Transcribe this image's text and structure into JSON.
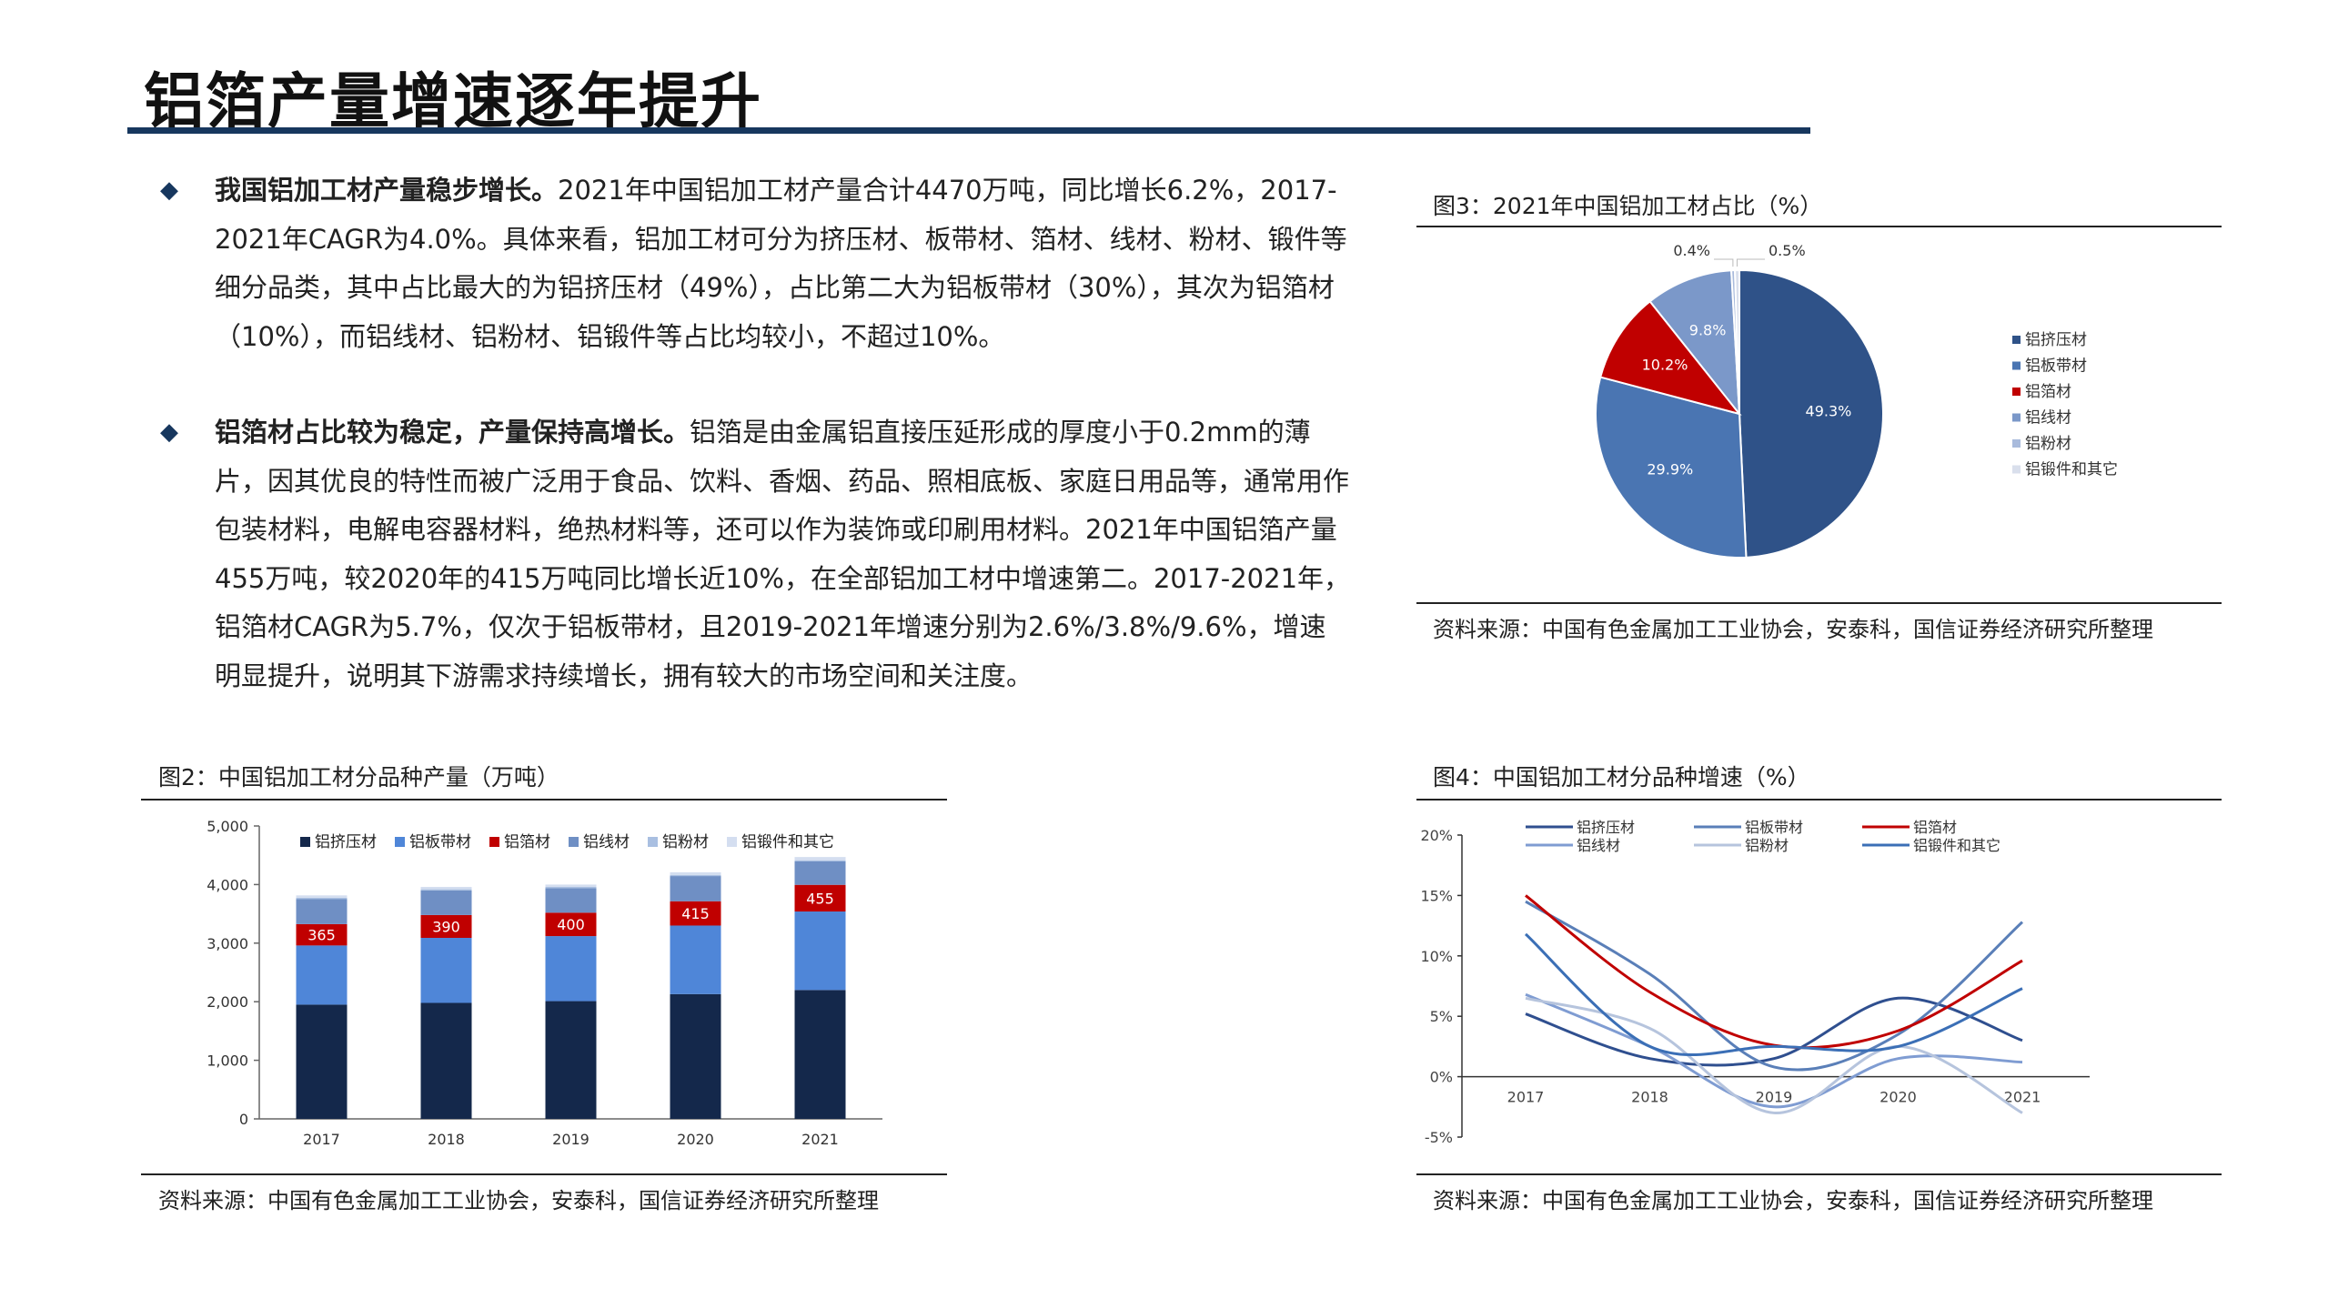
{
  "page_title": "铝箔产量增速逐年提升",
  "paragraphs": [
    {
      "lead": "我国铝加工材产量稳步增长。",
      "body": "2021年中国铝加工材产量合计4470万吨，同比增长6.2%，2017-2021年CAGR为4.0%。具体来看，铝加工材可分为挤压材、板带材、箔材、线材、粉材、锻件等细分品类，其中占比最大的为铝挤压材（49%），占比第二大为铝板带材（30%），其次为铝箔材（10%），而铝线材、铝粉材、铝锻件等占比均较小，不超过10%。"
    },
    {
      "lead": "铝箔材占比较为稳定，产量保持高增长。",
      "body": "铝箔是由金属铝直接压延形成的厚度小于0.2mm的薄片，因其优良的特性而被广泛用于食品、饮料、香烟、药品、照相底板、家庭日用品等，通常用作包装材料，电解电容器材料，绝热材料等，还可以作为装饰或印刷用材料。2021年中国铝箔产量455万吨，较2020年的415万吨同比增长近10%，在全部铝加工材中增速第二。2017-2021年，铝箔材CAGR为5.7%，仅次于铝板带材，且2019-2021年增速分别为2.6%/3.8%/9.6%，增速明显提升，说明其下游需求持续增长，拥有较大的市场空间和关注度。"
    }
  ],
  "figures": {
    "fig2": {
      "title": "图2：中国铝加工材分品种产量（万吨）",
      "source": "资料来源：中国有色金属加工工业协会，安泰科，国信证券经济研究所整理"
    },
    "fig3": {
      "title": "图3：2021年中国铝加工材占比（%）",
      "source": "资料来源：中国有色金属加工工业协会，安泰科，国信证券经济研究所整理"
    },
    "fig4": {
      "title": "图4：中国铝加工材分品种增速（%）",
      "source": "资料来源：中国有色金属加工工业协会，安泰科，国信证券经济研究所整理"
    }
  },
  "chart_data": [
    {
      "id": "fig2",
      "type": "bar",
      "stacked": true,
      "categories": [
        "2017",
        "2018",
        "2019",
        "2020",
        "2021"
      ],
      "ylim": [
        0,
        5000
      ],
      "yticks": [
        "0",
        "1,000",
        "2,000",
        "3,000",
        "4,000",
        "5,000"
      ],
      "legend_position": "top",
      "series": [
        {
          "name": "铝挤压材",
          "color": "#14284b",
          "values": [
            1950,
            1980,
            2010,
            2130,
            2200
          ]
        },
        {
          "name": "铝板带材",
          "color": "#4f86d8",
          "values": [
            1010,
            1110,
            1110,
            1170,
            1340
          ]
        },
        {
          "name": "铝箔材",
          "color": "#c00000",
          "values": [
            365,
            390,
            400,
            415,
            455
          ],
          "labels": [
            "365",
            "390",
            "400",
            "415",
            "455"
          ]
        },
        {
          "name": "铝线材",
          "color": "#6f8fc4",
          "values": [
            430,
            420,
            420,
            430,
            400
          ]
        },
        {
          "name": "铝粉材",
          "color": "#a9bfe1",
          "values": [
            20,
            20,
            20,
            20,
            20
          ]
        },
        {
          "name": "铝锻件和其它",
          "color": "#d4def0",
          "values": [
            40,
            40,
            40,
            45,
            55
          ]
        }
      ]
    },
    {
      "id": "fig3",
      "type": "pie",
      "legend_position": "right",
      "slices": [
        {
          "name": "铝挤压材",
          "value": 49.3,
          "label": "49.3%",
          "color": "#2f5288"
        },
        {
          "name": "铝板带材",
          "value": 29.9,
          "label": "29.9%",
          "color": "#4a75b2"
        },
        {
          "name": "铝箔材",
          "value": 10.2,
          "label": "10.2%",
          "color": "#c00000"
        },
        {
          "name": "铝线材",
          "value": 9.8,
          "label": "9.8%",
          "color": "#7b98c9"
        },
        {
          "name": "铝粉材",
          "value": 0.4,
          "label": "0.4%",
          "color": "#a9bbdc"
        },
        {
          "name": "铝锻件和其它",
          "value": 0.5,
          "label": "0.5%",
          "color": "#d9dfec"
        }
      ]
    },
    {
      "id": "fig4",
      "type": "line",
      "x": [
        "2017",
        "2018",
        "2019",
        "2020",
        "2021"
      ],
      "ylim": [
        -5,
        20
      ],
      "yticks": [
        "-5%",
        "0%",
        "5%",
        "10%",
        "15%",
        "20%"
      ],
      "legend_position": "top",
      "series": [
        {
          "name": "铝挤压材",
          "color": "#2f4f8f",
          "values": [
            5.2,
            1.5,
            1.5,
            6.5,
            3.0
          ]
        },
        {
          "name": "铝板带材",
          "color": "#5a7fb8",
          "values": [
            14.5,
            8.5,
            0.8,
            3.5,
            12.8
          ]
        },
        {
          "name": "铝箔材",
          "color": "#c00000",
          "values": [
            15.0,
            7.0,
            2.6,
            3.8,
            9.6
          ]
        },
        {
          "name": "铝线材",
          "color": "#7f9cd2",
          "values": [
            6.8,
            2.5,
            -2.5,
            1.5,
            1.2
          ]
        },
        {
          "name": "铝粉材",
          "color": "#b6c4dd",
          "values": [
            6.5,
            4.0,
            -3.0,
            2.5,
            -3.0
          ]
        },
        {
          "name": "铝锻件和其它",
          "color": "#3b6fb6",
          "values": [
            11.8,
            2.5,
            2.5,
            2.5,
            7.3
          ]
        }
      ]
    }
  ]
}
